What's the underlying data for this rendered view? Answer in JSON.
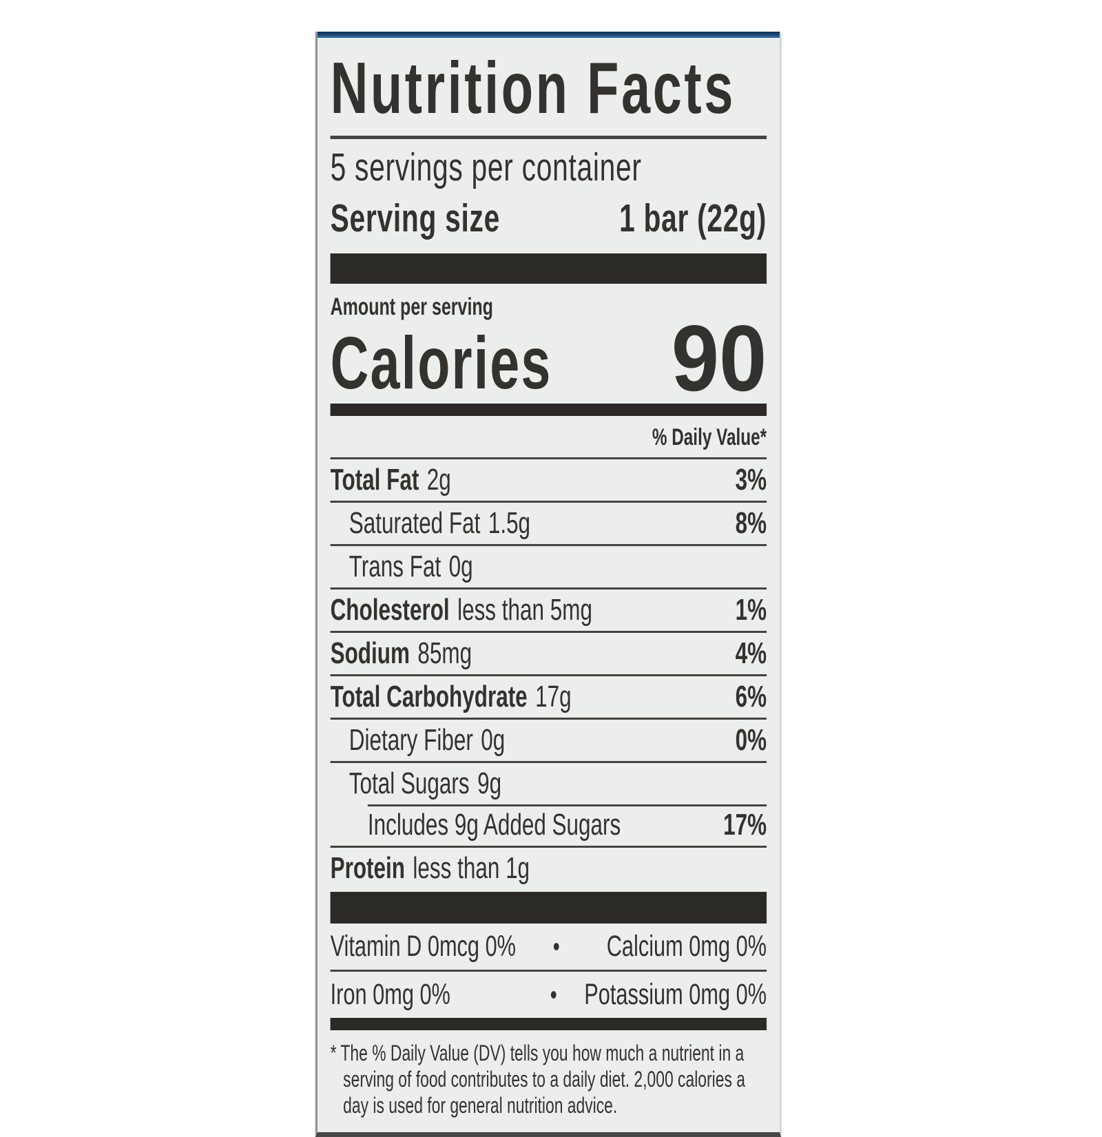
{
  "page": {
    "background": "#ffffff"
  },
  "colors": {
    "accent_blue": "#2f74b3",
    "ink": "#34322f",
    "divider_bar": "#2b2a27",
    "panel_background": "#ebeeed"
  },
  "label": {
    "title": "Nutrition Facts",
    "servings_per_container": "5 servings per container",
    "serving_size": {
      "label": "Serving size",
      "value": "1 bar (22g)"
    },
    "amount_per_serving": "Amount per serving",
    "calories": {
      "label": "Calories",
      "value": "90"
    },
    "daily_value_header": "% Daily Value*",
    "nutrients": [
      {
        "name": "Total Fat",
        "amount": "2g",
        "dv": "3%",
        "bold": true,
        "indent": 0,
        "rule": "full"
      },
      {
        "name": "Saturated Fat",
        "amount": "1.5g",
        "dv": "8%",
        "bold": false,
        "indent": 1,
        "rule": "full"
      },
      {
        "name": "Trans Fat",
        "amount": "0g",
        "dv": "",
        "bold": false,
        "indent": 1,
        "rule": "full"
      },
      {
        "name": "Cholesterol",
        "amount": "less than 5mg",
        "dv": "1%",
        "bold": true,
        "indent": 0,
        "rule": "full"
      },
      {
        "name": "Sodium",
        "amount": "85mg",
        "dv": "4%",
        "bold": true,
        "indent": 0,
        "rule": "full"
      },
      {
        "name": "Total Carbohydrate",
        "amount": "17g",
        "dv": "6%",
        "bold": true,
        "indent": 0,
        "rule": "full"
      },
      {
        "name": "Dietary Fiber",
        "amount": "0g",
        "dv": "0%",
        "bold": false,
        "indent": 1,
        "rule": "full"
      },
      {
        "name": "Total Sugars",
        "amount": "9g",
        "dv": "",
        "bold": false,
        "indent": 1,
        "rule": "full"
      },
      {
        "name": "Includes 9g Added Sugars",
        "amount": "",
        "dv": "17%",
        "bold": false,
        "indent": 2,
        "rule": "inset"
      },
      {
        "name": "Protein",
        "amount": "less than 1g",
        "dv": "",
        "bold": true,
        "indent": 0,
        "rule": "full"
      }
    ],
    "micronutrients": [
      {
        "left": "Vitamin D 0mcg 0%",
        "separator": "•",
        "right": "Calcium 0mg 0%"
      },
      {
        "left": "Iron 0mg 0%",
        "separator": "•",
        "right": "Potassium 0mg 0%"
      }
    ],
    "footnote": "* The % Daily Value (DV) tells you how much a nutrient in a serving of food contributes to a daily diet. 2,000 calories a day is used for general nutrition advice."
  }
}
